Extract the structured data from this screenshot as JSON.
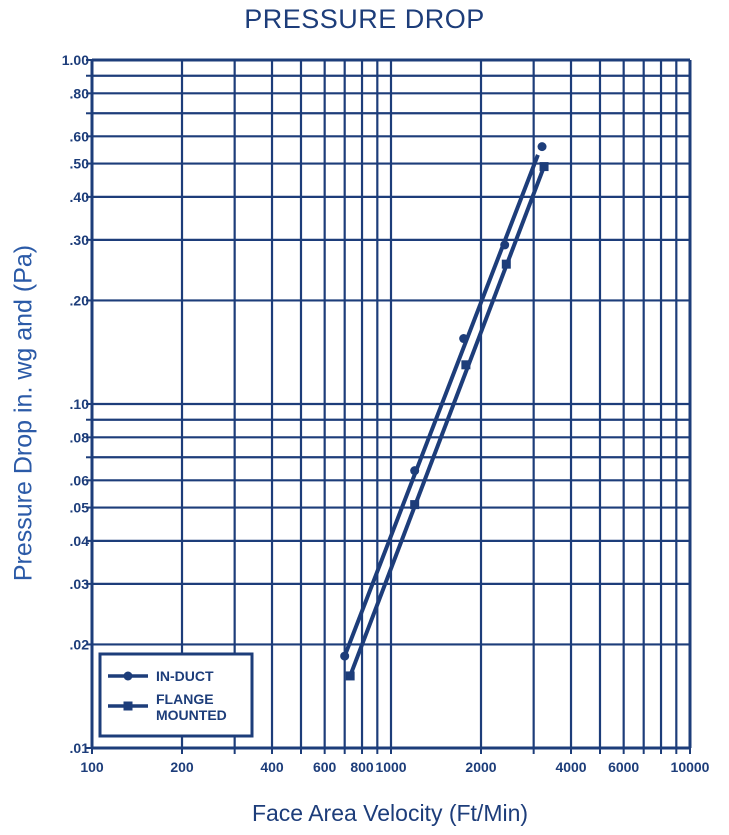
{
  "chart_data": {
    "type": "line",
    "title": "PRESSURE DROP",
    "xlabel": "Face Area Velocity (Ft/Min)",
    "ylabel": "Pressure Drop  in. wg and (Pa)",
    "x_scale": "log",
    "y_scale": "log",
    "xlim": [
      100,
      10000
    ],
    "ylim": [
      0.01,
      1.0
    ],
    "grid": true,
    "legend_position": "bottom-left",
    "x_ticks": [
      {
        "value": 100,
        "label": "100"
      },
      {
        "value": 200,
        "label": "200"
      },
      {
        "value": 400,
        "label": "400"
      },
      {
        "value": 600,
        "label": "600"
      },
      {
        "value": 800,
        "label": "800"
      },
      {
        "value": 1000,
        "label": "1000"
      },
      {
        "value": 2000,
        "label": "2000"
      },
      {
        "value": 4000,
        "label": "4000"
      },
      {
        "value": 6000,
        "label": "6000"
      },
      {
        "value": 10000,
        "label": "10000"
      }
    ],
    "x_grid": [
      100,
      200,
      300,
      400,
      500,
      600,
      700,
      800,
      900,
      1000,
      2000,
      3000,
      4000,
      5000,
      6000,
      7000,
      8000,
      9000,
      10000
    ],
    "y_ticks": [
      {
        "value": 1.0,
        "label": "1.00"
      },
      {
        "value": 0.8,
        "label": ".80"
      },
      {
        "value": 0.6,
        "label": ".60"
      },
      {
        "value": 0.5,
        "label": ".50"
      },
      {
        "value": 0.4,
        "label": ".40"
      },
      {
        "value": 0.3,
        "label": ".30"
      },
      {
        "value": 0.2,
        "label": ".20"
      },
      {
        "value": 0.1,
        "label": ".10"
      },
      {
        "value": 0.08,
        "label": ".08"
      },
      {
        "value": 0.06,
        "label": ".06"
      },
      {
        "value": 0.05,
        "label": ".05"
      },
      {
        "value": 0.04,
        "label": ".04"
      },
      {
        "value": 0.03,
        "label": ".03"
      },
      {
        "value": 0.02,
        "label": ".02"
      },
      {
        "value": 0.01,
        "label": ".01"
      }
    ],
    "y_grid": [
      0.01,
      0.02,
      0.03,
      0.04,
      0.05,
      0.06,
      0.07,
      0.08,
      0.09,
      0.1,
      0.2,
      0.3,
      0.4,
      0.5,
      0.6,
      0.7,
      0.8,
      0.9,
      1.0
    ],
    "series": [
      {
        "name": "IN-DUCT",
        "marker": "circle",
        "color": "#1d3d7a",
        "points": [
          {
            "x": 700,
            "y": 0.0185
          },
          {
            "x": 1200,
            "y": 0.064
          },
          {
            "x": 1750,
            "y": 0.155
          },
          {
            "x": 2400,
            "y": 0.29
          },
          {
            "x": 3200,
            "y": 0.56
          }
        ],
        "line": [
          {
            "x": 700,
            "y": 0.0185
          },
          {
            "x": 3100,
            "y": 0.53
          }
        ]
      },
      {
        "name": "FLANGE\nMOUNTED",
        "marker": "square",
        "color": "#1d3d7a",
        "points": [
          {
            "x": 730,
            "y": 0.0162
          },
          {
            "x": 1200,
            "y": 0.051
          },
          {
            "x": 1780,
            "y": 0.13
          },
          {
            "x": 2430,
            "y": 0.255
          },
          {
            "x": 3250,
            "y": 0.49
          }
        ],
        "line": [
          {
            "x": 730,
            "y": 0.0162
          },
          {
            "x": 3250,
            "y": 0.49
          }
        ]
      }
    ]
  }
}
